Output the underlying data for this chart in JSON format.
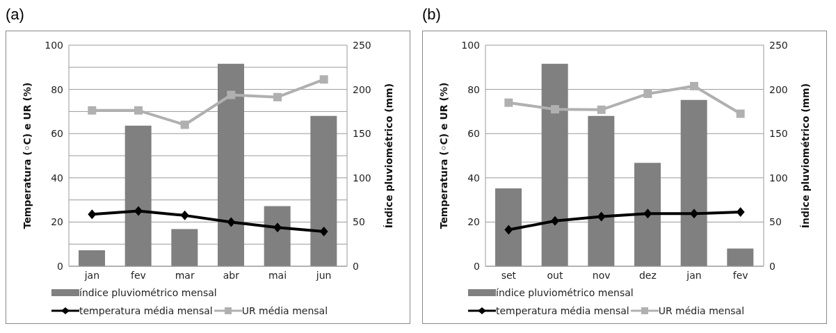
{
  "chart_data": [
    {
      "type": "bar",
      "title": "(a)",
      "categories": [
        "jan",
        "fev",
        "mar",
        "abr",
        "mai",
        "jun"
      ],
      "ylabel": "Temperatura (◦C) e UR (%)",
      "y2label": "Índice pluviométrico (mm)",
      "ylim": [
        0,
        100
      ],
      "yticks": [
        0,
        {
          "value": 10,
          "label": null
        },
        20,
        {
          "value": 30,
          "label": null
        },
        40,
        {
          "value": 50,
          "label": null
        },
        60,
        {
          "value": 70,
          "label": null
        },
        80,
        {
          "value": 90,
          "label": null
        },
        100
      ],
      "y2lim": [
        0,
        250
      ],
      "y2ticks": [
        0,
        50,
        100,
        150,
        200,
        250
      ],
      "grid": true,
      "legend": "bottom",
      "series": [
        {
          "name": "índice pluviométrico mensal",
          "axis": "y2",
          "color": "#808080",
          "values": [
            18,
            159,
            42,
            229,
            68,
            170
          ]
        },
        {
          "name": "temperatura média mensal",
          "type": "line",
          "marker": "diamond",
          "color": "#000000",
          "values": [
            23.5,
            25,
            23,
            20,
            17.5,
            15.7
          ]
        },
        {
          "name": "UR média mensal",
          "type": "line",
          "marker": "square",
          "color": "#b0b0b0",
          "values": [
            70.5,
            70.5,
            64,
            77.5,
            76.5,
            84.5
          ]
        }
      ]
    },
    {
      "type": "bar",
      "title": "(b)",
      "categories": [
        "set",
        "out",
        "nov",
        "dez",
        "jan",
        "fev"
      ],
      "ylabel": "Temperatura (◦C) e UR (%)",
      "y2label": "Índice pluviométrico (mm)",
      "ylim": [
        0,
        100
      ],
      "yticks": [
        0,
        20,
        40,
        60,
        80,
        100
      ],
      "y2lim": [
        0,
        250
      ],
      "y2ticks": [
        0,
        50,
        100,
        150,
        200,
        250
      ],
      "grid": true,
      "legend": "bottom",
      "series": [
        {
          "name": "índice pluviométrico mensal",
          "axis": "y2",
          "color": "#808080",
          "values": [
            88,
            229,
            170,
            117,
            188,
            20
          ]
        },
        {
          "name": "temperatura média mensal",
          "type": "line",
          "marker": "diamond",
          "color": "#000000",
          "values": [
            16.5,
            20.5,
            22.5,
            23.8,
            23.8,
            24.5
          ]
        },
        {
          "name": "UR média mensal",
          "type": "line",
          "marker": "square",
          "color": "#b0b0b0",
          "values": [
            74,
            71,
            70.8,
            78,
            81.5,
            69
          ]
        }
      ]
    }
  ]
}
